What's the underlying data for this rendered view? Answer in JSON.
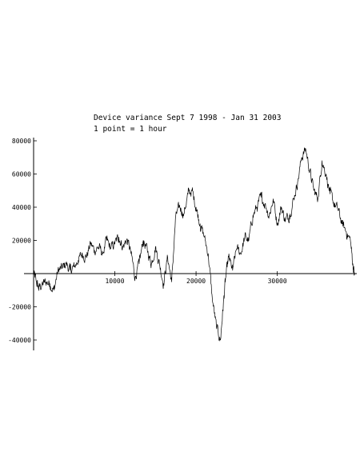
{
  "chart_data": {
    "type": "line",
    "title": "Device variance Sept 7 1998 - Jan 31 2003",
    "subtitle": "1 point = 1 hour",
    "xlabel": "",
    "ylabel": "",
    "xlim": [
      0,
      39500
    ],
    "ylim": [
      -45000,
      80000
    ],
    "grid": false,
    "x_ticks": [
      {
        "value": 10000,
        "label": "10000"
      },
      {
        "value": 20000,
        "label": "20000"
      },
      {
        "value": 30000,
        "label": "30000"
      }
    ],
    "y_ticks": [
      {
        "value": 80000,
        "label": "80000"
      },
      {
        "value": 60000,
        "label": "60000"
      },
      {
        "value": 40000,
        "label": "40000"
      },
      {
        "value": 20000,
        "label": "20000"
      },
      {
        "value": -20000,
        "label": "-20000"
      },
      {
        "value": -40000,
        "label": "-40000"
      }
    ],
    "series": [
      {
        "name": "",
        "x": [
          0,
          300,
          600,
          1000,
          1500,
          2000,
          2500,
          3000,
          3500,
          4000,
          4500,
          5000,
          5500,
          6000,
          6500,
          7000,
          7500,
          8000,
          8500,
          9000,
          9500,
          10000,
          10500,
          11000,
          11500,
          12000,
          12500,
          13000,
          13500,
          14000,
          14500,
          15000,
          15500,
          16000,
          16500,
          17000,
          17500,
          18000,
          18500,
          19000,
          19500,
          20000,
          20500,
          21000,
          21500,
          22000,
          22500,
          23000,
          23300,
          23600,
          24000,
          24500,
          25000,
          25500,
          26000,
          26500,
          27000,
          27500,
          28000,
          28500,
          29000,
          29500,
          30000,
          30500,
          31000,
          31500,
          32000,
          32500,
          33000,
          33500,
          34000,
          34500,
          35000,
          35500,
          36000,
          36500,
          37000,
          37500,
          38000,
          38500,
          39000,
          39300,
          39500
        ],
        "values": [
          0,
          -4000,
          -9000,
          -7000,
          -5000,
          -6000,
          -10000,
          2000,
          3000,
          6000,
          2000,
          4000,
          8000,
          12000,
          10000,
          18000,
          14000,
          16000,
          12000,
          20000,
          15000,
          18000,
          22000,
          16000,
          21000,
          12000,
          -2000,
          6000,
          20000,
          14000,
          6000,
          16000,
          6000,
          -6000,
          10000,
          -5000,
          35000,
          40000,
          36000,
          48000,
          50000,
          40000,
          30000,
          22000,
          12000,
          -15000,
          -32000,
          -40000,
          -22000,
          -5000,
          10000,
          2000,
          15000,
          12000,
          22000,
          20000,
          35000,
          40000,
          46000,
          42000,
          35000,
          45000,
          30000,
          40000,
          32000,
          35000,
          45000,
          55000,
          70000,
          75000,
          62000,
          50000,
          45000,
          68000,
          60000,
          48000,
          42000,
          38000,
          30000,
          25000,
          20000,
          6000,
          -1000
        ]
      }
    ]
  }
}
